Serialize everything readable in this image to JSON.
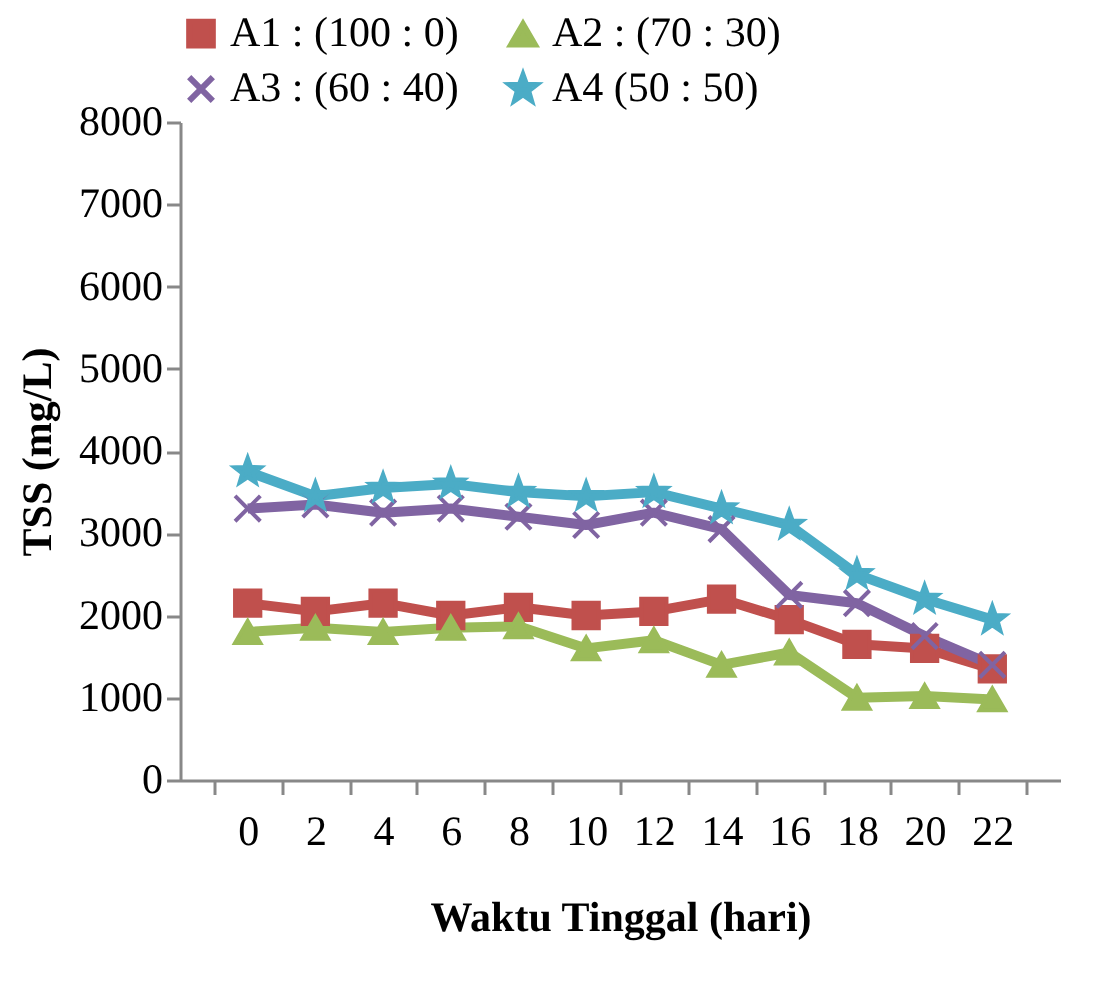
{
  "chart_data": {
    "type": "line",
    "xlabel": "Waktu Tinggal (hari)",
    "ylabel": "TSS (mg/L)",
    "categories": [
      "0",
      "2",
      "4",
      "6",
      "8",
      "10",
      "12",
      "14",
      "16",
      "18",
      "20",
      "22"
    ],
    "series": [
      {
        "name": "A1  : (100 : 0)",
        "color": "#c0504d",
        "marker": "square",
        "values": [
          2150,
          2050,
          2150,
          2000,
          2100,
          2000,
          2050,
          2200,
          1950,
          1650,
          1600,
          1350
        ]
      },
      {
        "name": "A2  : (70 : 30)",
        "color": "#9bbb59",
        "marker": "triangle",
        "values": [
          1800,
          1850,
          1800,
          1850,
          1870,
          1600,
          1700,
          1400,
          1550,
          1000,
          1020,
          980
        ]
      },
      {
        "name": "A3 : (60 : 40)",
        "color": "#8064a2",
        "marker": "cross",
        "values": [
          3300,
          3350,
          3250,
          3300,
          3200,
          3100,
          3250,
          3050,
          2250,
          2150,
          1750,
          1400
        ]
      },
      {
        "name": "A4   (50 : 50)",
        "color": "#4bacc6",
        "marker": "star",
        "values": [
          3750,
          3450,
          3550,
          3600,
          3500,
          3450,
          3500,
          3300,
          3100,
          2500,
          2200,
          1950
        ]
      }
    ],
    "ylim": [
      0,
      8000
    ],
    "yticks": [
      0,
      1000,
      2000,
      3000,
      4000,
      5000,
      6000,
      7000,
      8000
    ],
    "grid": false,
    "legend": "top",
    "line_style": "solid"
  }
}
